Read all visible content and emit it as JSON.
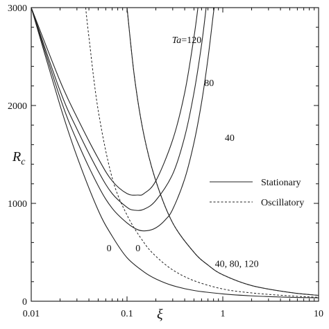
{
  "chart_data": {
    "type": "line",
    "xscale": "log",
    "xlim": [
      0.01,
      10
    ],
    "ylim": [
      0,
      3000
    ],
    "xlabel": "ξ",
    "ylabel_main": "R",
    "ylabel_sub": "c",
    "x_ticks": [
      {
        "value": 0.01,
        "label": "0.01"
      },
      {
        "value": 0.1,
        "label": "0.1"
      },
      {
        "value": 1,
        "label": "1"
      },
      {
        "value": 10,
        "label": "10"
      }
    ],
    "y_ticks": [
      {
        "value": 0,
        "label": "0"
      },
      {
        "value": 1000,
        "label": "1000"
      },
      {
        "value": 2000,
        "label": "2000"
      },
      {
        "value": 3000,
        "label": "3000"
      }
    ],
    "legend": {
      "position": "right",
      "entries": [
        {
          "label": "Stationary",
          "style": "solid"
        },
        {
          "label": "Oscillatory",
          "style": "dashed"
        }
      ]
    },
    "series": [
      {
        "style": "solid",
        "points": [
          [
            0.01,
            3000
          ],
          [
            0.02,
            2000
          ],
          [
            0.03,
            1480
          ],
          [
            0.05,
            930
          ],
          [
            0.07,
            665
          ],
          [
            0.1,
            445
          ],
          [
            0.15,
            300
          ],
          [
            0.2,
            228
          ],
          [
            0.3,
            160
          ],
          [
            0.5,
            110
          ],
          [
            1,
            75
          ],
          [
            2,
            55
          ],
          [
            5,
            40
          ],
          [
            10,
            35
          ]
        ]
      },
      {
        "style": "solid",
        "points": [
          [
            0.01,
            3000
          ],
          [
            0.02,
            2080
          ],
          [
            0.03,
            1640
          ],
          [
            0.05,
            1180
          ],
          [
            0.07,
            950
          ],
          [
            0.1,
            800
          ],
          [
            0.13,
            730
          ],
          [
            0.16,
            720
          ],
          [
            0.2,
            750
          ],
          [
            0.25,
            830
          ],
          [
            0.3,
            940
          ],
          [
            0.4,
            1250
          ],
          [
            0.5,
            1620
          ],
          [
            0.6,
            2030
          ],
          [
            0.7,
            2480
          ],
          [
            0.8,
            2950
          ],
          [
            0.82,
            3000
          ]
        ]
      },
      {
        "style": "solid",
        "points": [
          [
            0.01,
            3000
          ],
          [
            0.02,
            2150
          ],
          [
            0.03,
            1760
          ],
          [
            0.05,
            1330
          ],
          [
            0.07,
            1100
          ],
          [
            0.1,
            960
          ],
          [
            0.12,
            930
          ],
          [
            0.15,
            940
          ],
          [
            0.2,
            1030
          ],
          [
            0.3,
            1300
          ],
          [
            0.4,
            1680
          ],
          [
            0.5,
            2130
          ],
          [
            0.6,
            2620
          ],
          [
            0.67,
            3000
          ]
        ]
      },
      {
        "style": "solid",
        "points": [
          [
            0.01,
            3000
          ],
          [
            0.02,
            2250
          ],
          [
            0.03,
            1880
          ],
          [
            0.05,
            1460
          ],
          [
            0.07,
            1230
          ],
          [
            0.1,
            1100
          ],
          [
            0.13,
            1085
          ],
          [
            0.15,
            1100
          ],
          [
            0.2,
            1230
          ],
          [
            0.3,
            1650
          ],
          [
            0.4,
            2130
          ],
          [
            0.5,
            2700
          ],
          [
            0.55,
            3000
          ]
        ]
      },
      {
        "style": "dashed",
        "points": [
          [
            0.037,
            3000
          ],
          [
            0.04,
            2700
          ],
          [
            0.05,
            1950
          ],
          [
            0.07,
            1260
          ],
          [
            0.1,
            880
          ],
          [
            0.15,
            600
          ],
          [
            0.2,
            460
          ],
          [
            0.3,
            320
          ],
          [
            0.5,
            210
          ],
          [
            1,
            125
          ],
          [
            2,
            85
          ],
          [
            5,
            55
          ],
          [
            10,
            40
          ]
        ]
      },
      {
        "style": "solid",
        "points": [
          [
            0.1,
            3000
          ],
          [
            0.12,
            2280
          ],
          [
            0.15,
            1700
          ],
          [
            0.2,
            1230
          ],
          [
            0.3,
            800
          ],
          [
            0.5,
            500
          ],
          [
            0.7,
            370
          ],
          [
            1,
            270
          ],
          [
            2,
            160
          ],
          [
            5,
            90
          ],
          [
            10,
            60
          ]
        ]
      },
      {
        "style": "dashed",
        "points": [
          [
            0.1,
            3000
          ],
          [
            0.12,
            2280
          ],
          [
            0.15,
            1700
          ],
          [
            0.2,
            1230
          ],
          [
            0.3,
            800
          ],
          [
            0.5,
            500
          ],
          [
            0.7,
            370
          ],
          [
            1,
            270
          ],
          [
            2,
            160
          ],
          [
            5,
            90
          ],
          [
            10,
            60
          ]
        ]
      }
    ],
    "annotations": [
      {
        "text": "Ta=120",
        "x": 0.42,
        "y": 2640,
        "italic_prefix": "Ta"
      },
      {
        "text": "80",
        "x": 0.72,
        "y": 2200
      },
      {
        "text": "40",
        "x": 1.18,
        "y": 1640
      },
      {
        "text": "0",
        "x": 0.065,
        "y": 510
      },
      {
        "text": "0",
        "x": 0.13,
        "y": 510
      },
      {
        "text": "40, 80, 120",
        "x": 1.4,
        "y": 350
      }
    ]
  }
}
